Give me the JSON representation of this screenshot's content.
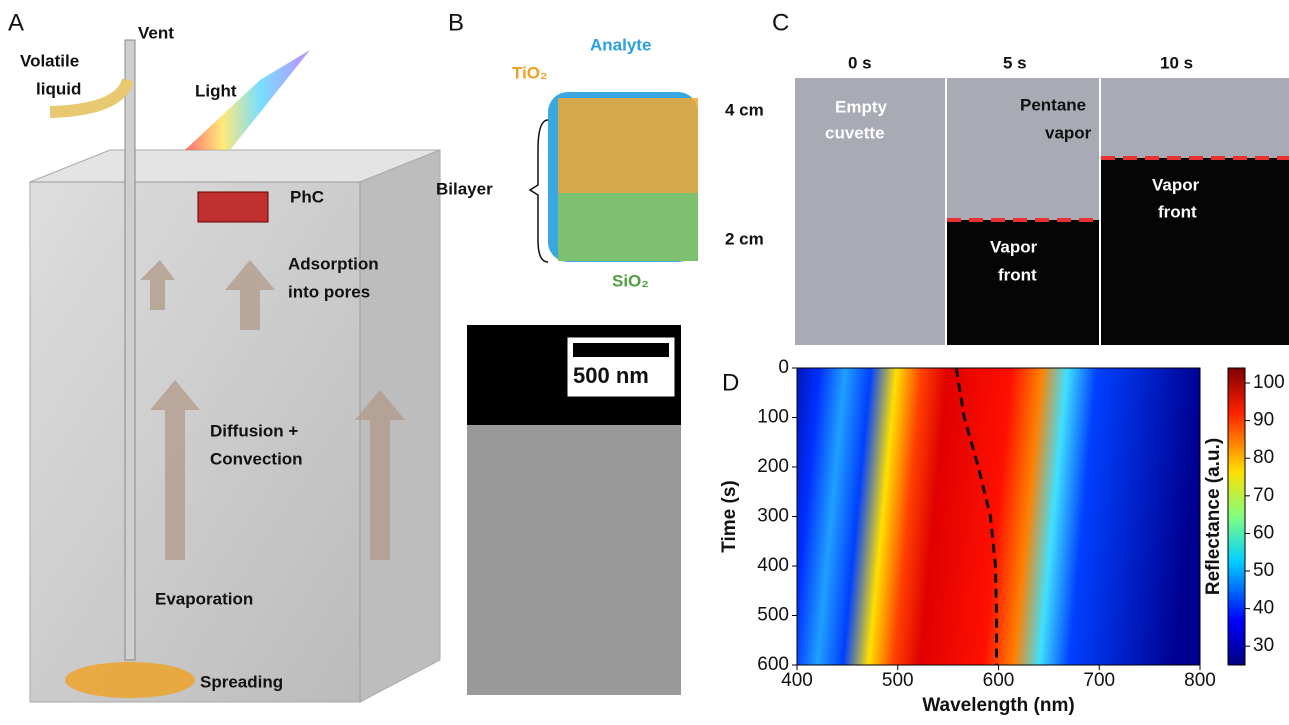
{
  "panel_a": {
    "letter": "A",
    "labels": [
      "Volatile",
      "liquid",
      "Vent",
      "Light",
      "PhC",
      "Adsorption",
      "into pores",
      "Diffusion +",
      "Convection",
      "Evaporation",
      "Spreading"
    ]
  },
  "panel_b": {
    "letter": "B",
    "labels": [
      "TiO₂",
      "Analyte",
      "Bilayer",
      "SiO₂"
    ],
    "scale_bar": "500  nm"
  },
  "panel_c": {
    "letter": "C",
    "times": [
      "0 s",
      "5 s",
      "10 s"
    ],
    "heights": [
      "4 cm",
      "2 cm"
    ],
    "labels": [
      "Empty",
      "cuvette",
      "Pentane",
      "vapor",
      "Vapor",
      "front",
      "Vapor",
      "front"
    ]
  },
  "chart_data": {
    "type": "line",
    "letter": "D",
    "x_label": "Wavelength (nm)",
    "y_label": "Time (s)",
    "colorbar_label": "Reflectance (a.u.)",
    "x": [
      558,
      566,
      580,
      592,
      597,
      598,
      598
    ],
    "values": [
      0,
      100,
      200,
      300,
      400,
      500,
      600
    ],
    "xlim": [
      400,
      800
    ],
    "xticks": [
      400,
      500,
      600,
      700,
      800
    ],
    "ylim": [
      0,
      600
    ],
    "yticks": [
      0,
      100,
      200,
      300,
      400,
      500,
      600
    ],
    "y_inverted": true,
    "zlim": [
      25,
      104
    ],
    "zticks": [
      30,
      40,
      50,
      60,
      70,
      80,
      90,
      100
    ],
    "color": "#111111"
  }
}
